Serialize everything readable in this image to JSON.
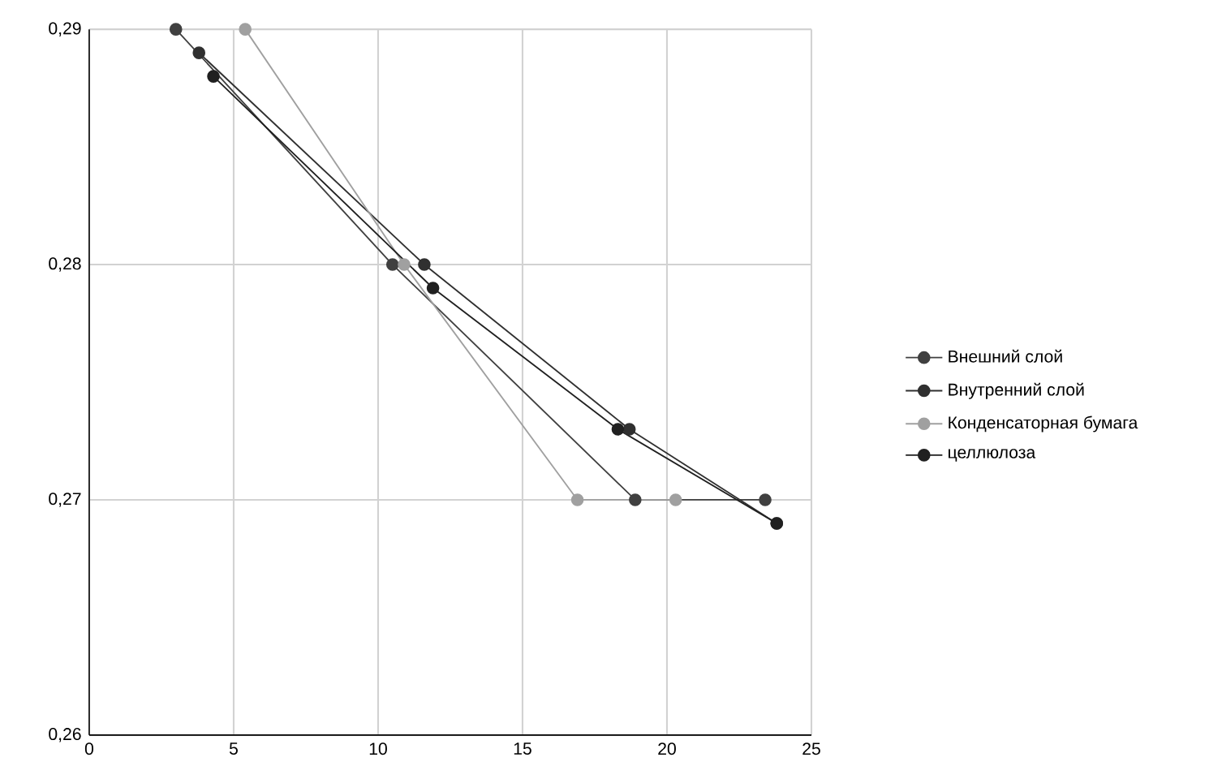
{
  "chart_data": {
    "type": "line",
    "marker": "circle",
    "grid": true,
    "legend": "right",
    "xlim": [
      0,
      25
    ],
    "xticks": [
      0,
      5,
      10,
      15,
      20,
      25
    ],
    "ylim": [
      0.26,
      0.29
    ],
    "yticks": [
      {
        "value": 0.26,
        "label": "0,26"
      },
      {
        "value": 0.27,
        "label": "0,27"
      },
      {
        "value": 0.28,
        "label": "0,28"
      },
      {
        "value": 0.29,
        "label": "0,29"
      }
    ],
    "series": [
      {
        "name": "Внешний слой",
        "color": "#404040",
        "x": [
          3.0,
          10.5,
          18.9,
          23.4
        ],
        "values": [
          0.29,
          0.28,
          0.27,
          0.27
        ]
      },
      {
        "name": "Внутренний слой",
        "color": "#303030",
        "x": [
          3.8,
          11.6,
          18.7,
          23.8
        ],
        "values": [
          0.289,
          0.28,
          0.273,
          0.269
        ]
      },
      {
        "name": "Конденсаторная бумага",
        "color": "#a0a0a0",
        "x": [
          5.4,
          10.9,
          16.9,
          20.3
        ],
        "values": [
          0.29,
          0.28,
          0.27,
          0.27
        ]
      },
      {
        "name": "целлюлоза",
        "color": "#202020",
        "x": [
          4.3,
          11.9,
          18.3,
          23.8
        ],
        "values": [
          0.288,
          0.279,
          0.273,
          0.269
        ]
      }
    ]
  }
}
